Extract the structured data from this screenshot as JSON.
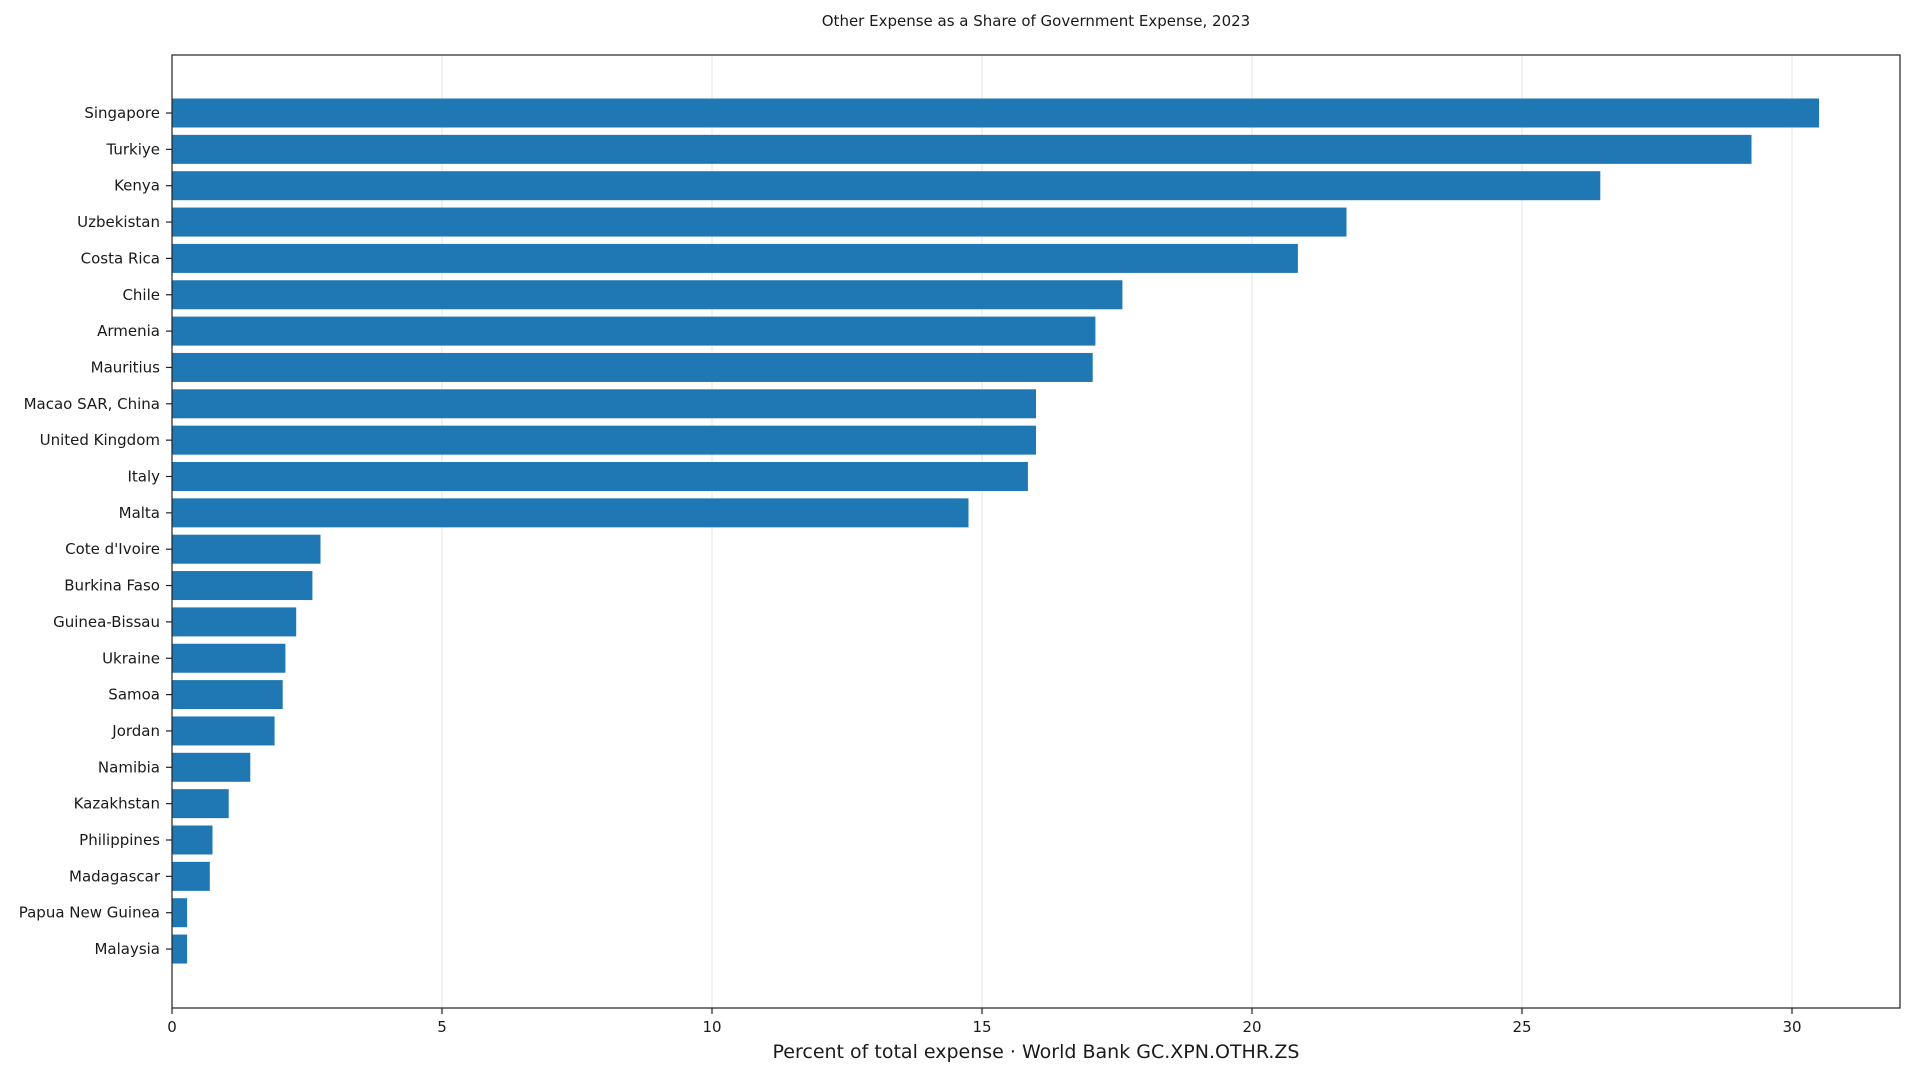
{
  "colors": {
    "bar": "#1f77b4",
    "grid": "#e6e6e6",
    "axis": "#222222",
    "background": "#ffffff"
  },
  "chart_data": {
    "type": "bar",
    "orientation": "horizontal",
    "title": "Other Expense as a Share of Government Expense, 2023",
    "xlabel": "Percent of total expense · World Bank GC.XPN.OTHR.ZS",
    "ylabel": "",
    "xlim": [
      0,
      32
    ],
    "xticks": [
      0,
      5,
      10,
      15,
      20,
      25,
      30
    ],
    "grid": "vertical",
    "categories": [
      "Singapore",
      "Turkiye",
      "Kenya",
      "Uzbekistan",
      "Costa Rica",
      "Chile",
      "Armenia",
      "Mauritius",
      "Macao SAR, China",
      "United Kingdom",
      "Italy",
      "Malta",
      "Cote d'Ivoire",
      "Burkina Faso",
      "Guinea-Bissau",
      "Ukraine",
      "Samoa",
      "Jordan",
      "Namibia",
      "Kazakhstan",
      "Philippines",
      "Madagascar",
      "Papua New Guinea",
      "Malaysia"
    ],
    "values": [
      30.5,
      29.25,
      26.45,
      21.75,
      20.85,
      17.6,
      17.1,
      17.05,
      16.0,
      16.0,
      15.85,
      14.75,
      2.75,
      2.6,
      2.3,
      2.1,
      2.05,
      1.9,
      1.45,
      1.05,
      0.75,
      0.7,
      0.28,
      0.28
    ]
  }
}
